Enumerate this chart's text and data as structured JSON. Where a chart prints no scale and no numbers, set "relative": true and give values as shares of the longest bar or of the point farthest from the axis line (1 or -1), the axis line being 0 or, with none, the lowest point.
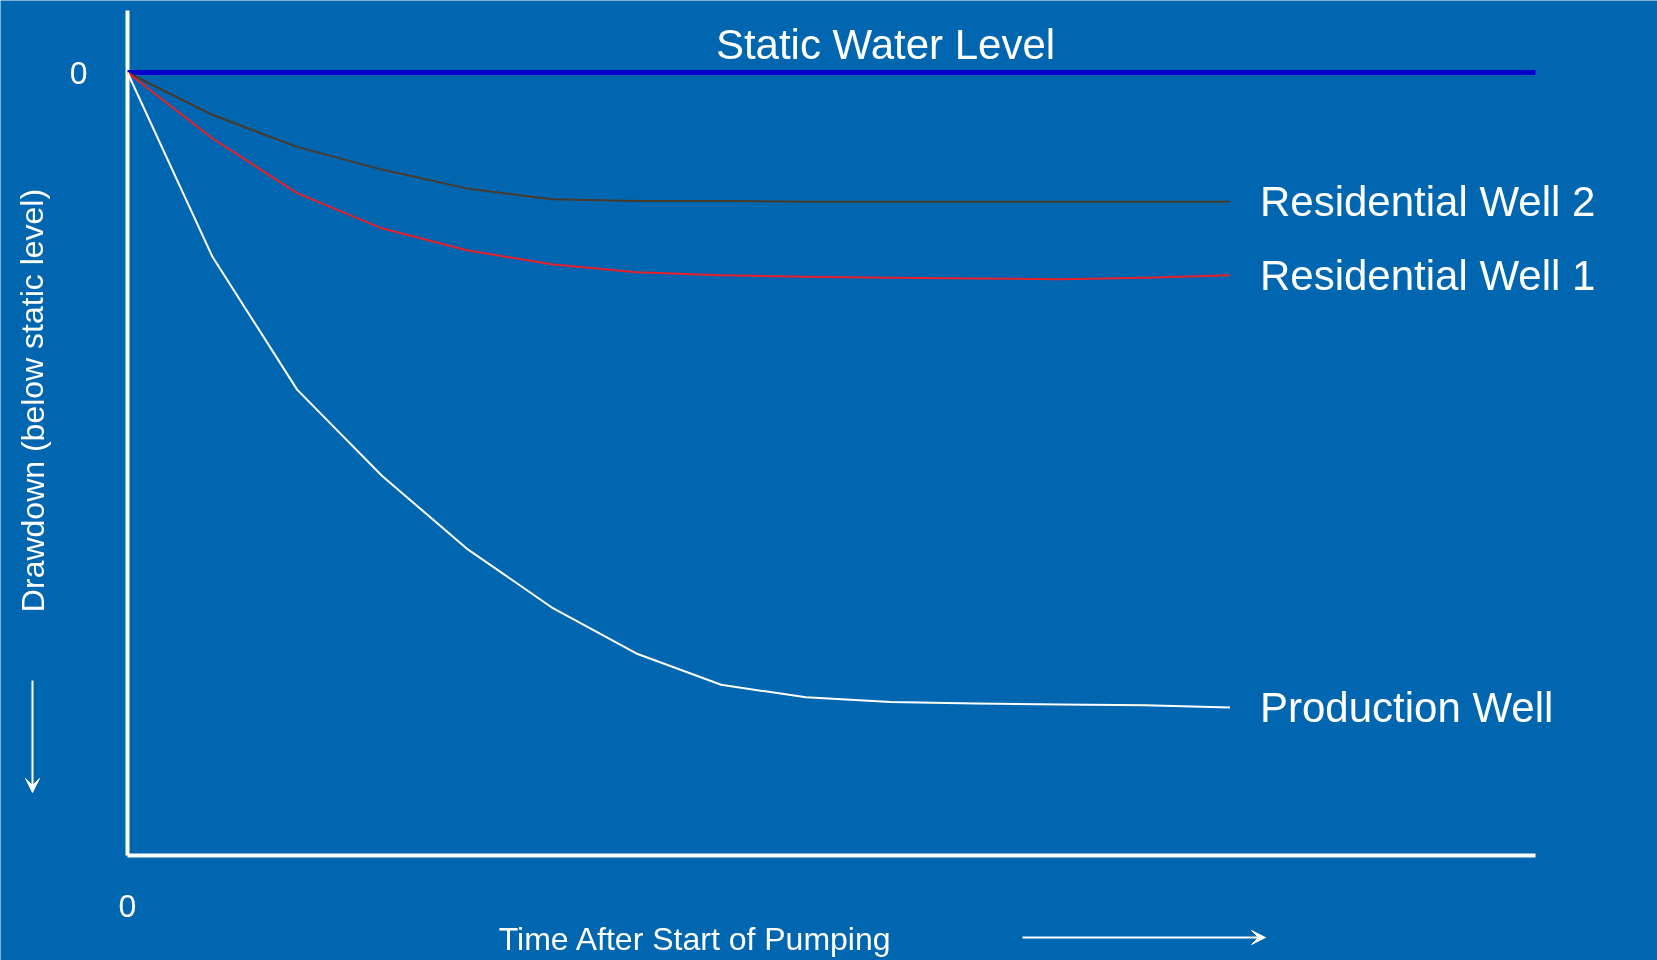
{
  "chart_data": {
    "type": "line",
    "relative": true,
    "xlabel": "Time After Start of Pumping",
    "ylabel": "Drawdown (below static level)",
    "annotations": [
      "0",
      "0"
    ],
    "grid": false,
    "marker": "none",
    "line_style": "solid",
    "categories": [
      null,
      null,
      null,
      null,
      null,
      null,
      null,
      null,
      null,
      null,
      null,
      null,
      null,
      null
    ],
    "ref_lines": [
      {
        "axis": "y",
        "value": 1,
        "label": "Static Water Level",
        "color": "#0000cc"
      }
    ],
    "series": [
      {
        "name": "Residential Well 2",
        "color": "#4a3a2a",
        "values": [
          1,
          0.946,
          0.905,
          0.876,
          0.852,
          0.838,
          0.836,
          0.836,
          0.835,
          0.835,
          0.835,
          0.835,
          0.835,
          0.835
        ]
      },
      {
        "name": "Residential Well 1",
        "color": "#e8202a",
        "values": [
          1,
          0.916,
          0.846,
          0.801,
          0.773,
          0.755,
          0.745,
          0.741,
          0.739,
          0.738,
          0.737,
          0.736,
          0.738,
          0.741
        ]
      },
      {
        "name": "Production Well",
        "color": "#ffffff",
        "values": [
          1,
          0.765,
          0.595,
          0.485,
          0.392,
          0.317,
          0.258,
          0.218,
          0.202,
          0.196,
          0.194,
          0.193,
          0.192,
          0.189
        ]
      }
    ]
  }
}
